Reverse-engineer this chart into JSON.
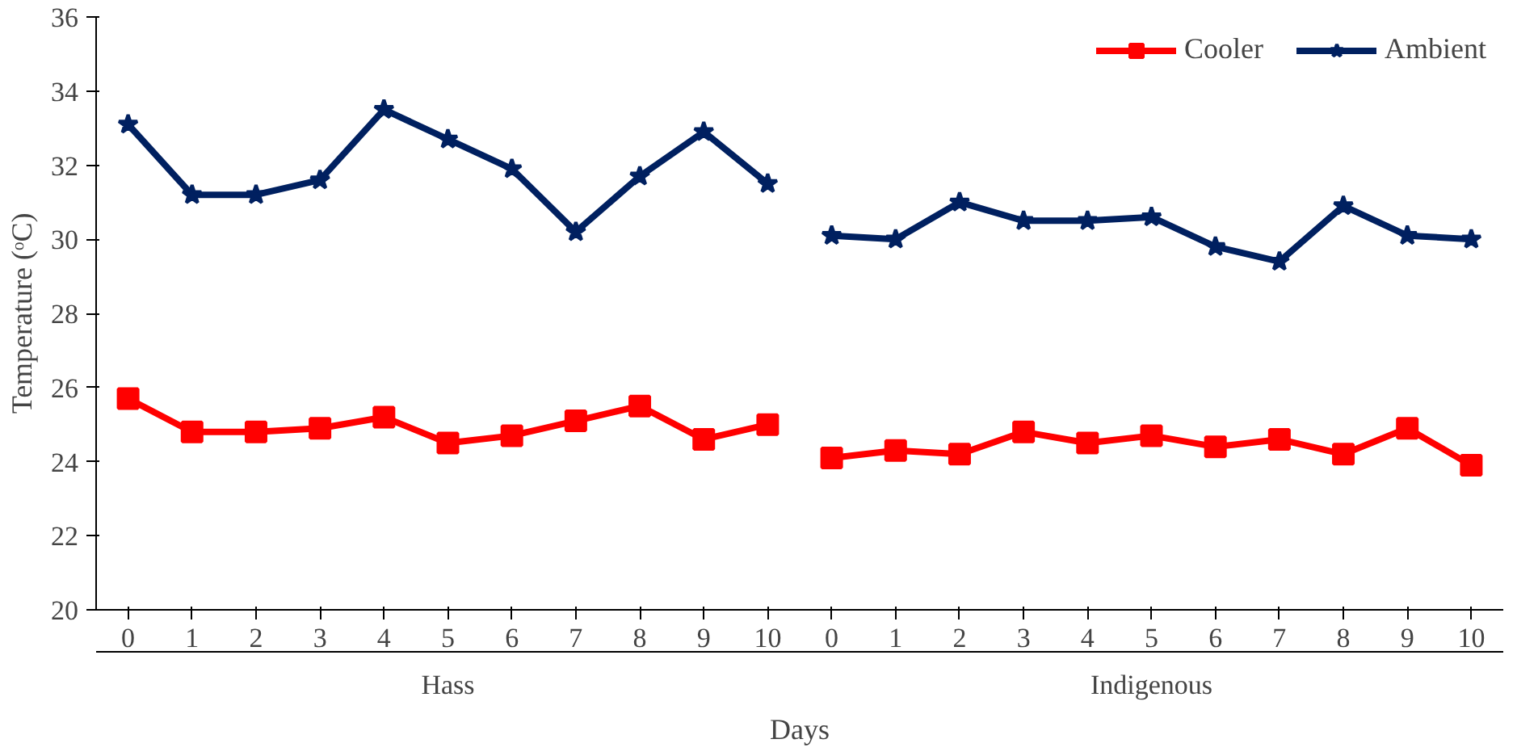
{
  "chart_data": {
    "type": "line",
    "xlabel": "Days",
    "ylabel": "Temperature (ᵒC)",
    "categories": [
      "0",
      "1",
      "2",
      "3",
      "4",
      "5",
      "6",
      "7",
      "8",
      "9",
      "10",
      "0",
      "1",
      "2",
      "3",
      "4",
      "5",
      "6",
      "7",
      "8",
      "9",
      "10"
    ],
    "annotations": [
      "Hass",
      "Indigenous"
    ],
    "series": [
      {
        "name": "Cooler",
        "color": "#ff0000",
        "marker": "square",
        "values": [
          25.7,
          24.8,
          24.8,
          24.9,
          25.2,
          24.5,
          24.7,
          25.1,
          25.5,
          24.6,
          25.0,
          24.1,
          24.3,
          24.2,
          24.8,
          24.5,
          24.7,
          24.4,
          24.6,
          24.2,
          24.9,
          23.9
        ]
      },
      {
        "name": "Ambient",
        "color": "#002060",
        "marker": "star",
        "values": [
          33.1,
          31.2,
          31.2,
          31.6,
          33.5,
          32.7,
          31.9,
          30.2,
          31.7,
          32.9,
          31.5,
          30.1,
          30.0,
          31.0,
          30.5,
          30.5,
          30.6,
          29.8,
          29.4,
          30.9,
          30.1,
          30.0
        ]
      }
    ],
    "ylim": [
      20,
      36
    ],
    "yticks": [
      20,
      22,
      24,
      26,
      28,
      30,
      32,
      34,
      36
    ],
    "grid": false,
    "legend": "top right"
  }
}
